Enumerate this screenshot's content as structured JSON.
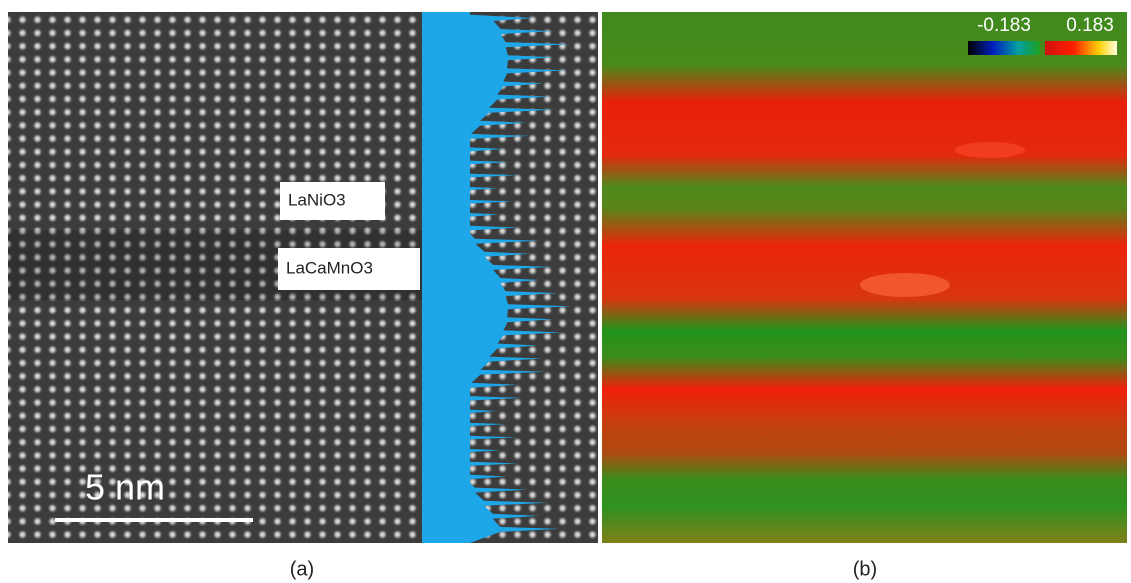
{
  "panel_a": {
    "labels": [
      "LaNiO3",
      "LaCaMnO3"
    ],
    "scale_bar": "5 nm",
    "caption": "(a)"
  },
  "panel_b": {
    "colorbar": {
      "min_label": "-0.183",
      "max_label": "0.183"
    },
    "caption": "(b)"
  }
}
